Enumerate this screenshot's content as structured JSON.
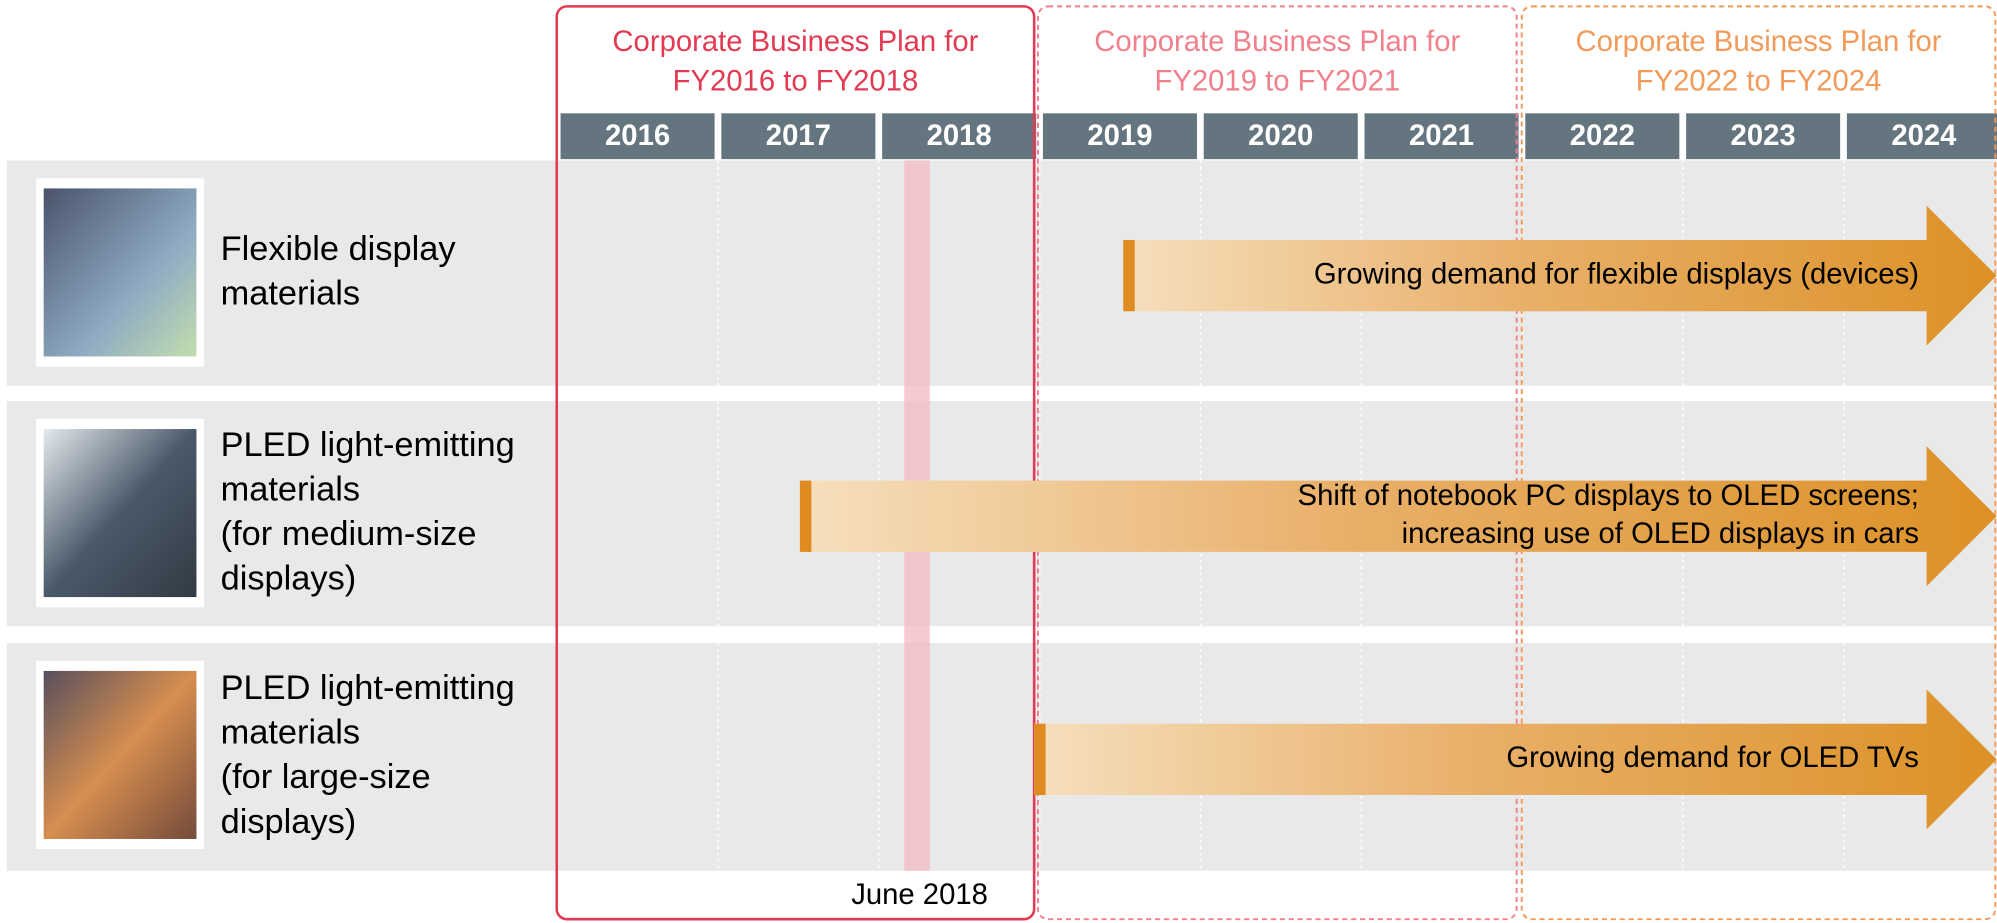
{
  "plans": [
    {
      "title": [
        "Corporate Business Plan for",
        "FY2016 to FY2018"
      ]
    },
    {
      "title": [
        "Corporate Business Plan for",
        "FY2019 to FY2021"
      ]
    },
    {
      "title": [
        "Corporate Business Plan for",
        "FY2022 to FY2024"
      ]
    }
  ],
  "years": [
    "2016",
    "2017",
    "2018",
    "2019",
    "2020",
    "2021",
    "2022",
    "2023",
    "2024"
  ],
  "rows": [
    {
      "label": [
        "Flexible display",
        "materials"
      ],
      "arrow": [
        "Growing demand for flexible displays (devices)"
      ]
    },
    {
      "label": [
        "PLED light-emitting",
        "materials",
        "(for medium-size",
        "displays)"
      ],
      "arrow": [
        "Shift of notebook PC displays to OLED screens;",
        "increasing use of OLED displays in cars"
      ]
    },
    {
      "label": [
        "PLED light-emitting",
        "materials",
        "(for large-size",
        "displays)"
      ],
      "arrow": [
        "Growing demand for OLED TVs"
      ]
    }
  ],
  "marker": "June 2018"
}
